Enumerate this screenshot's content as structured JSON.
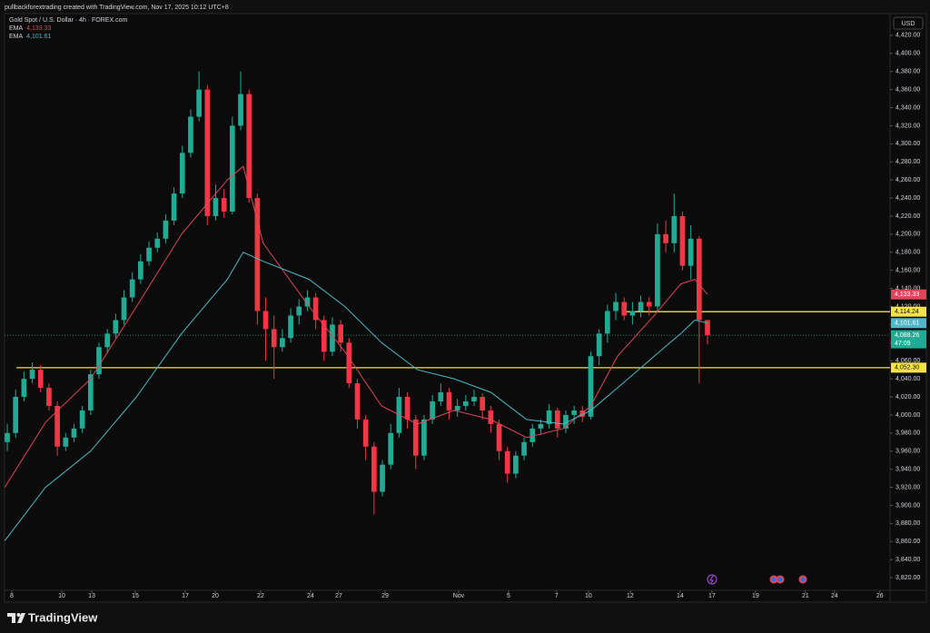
{
  "header": {
    "text": "pullbackforextrading created with TradingView.com, Nov 17, 2025 10:12 UTC+8"
  },
  "footer": {
    "brand": "TradingView"
  },
  "chart_data": {
    "type": "candlestick",
    "title": "Gold Spot / U.S. Dollar · 4h · FOREX.com",
    "axis_unit": "USD",
    "up_color": "#22ab94",
    "down_color": "#f23645",
    "grid": false,
    "x": [
      0,
      1,
      2,
      3,
      4,
      5,
      6,
      7,
      8,
      9,
      10,
      11,
      12,
      13,
      14,
      15,
      16,
      17,
      18,
      19,
      20,
      21,
      22,
      23,
      24,
      25,
      26,
      27,
      28,
      29,
      30,
      31,
      32,
      33,
      34,
      35,
      36,
      37,
      38,
      39,
      40,
      41,
      42,
      43,
      44,
      45,
      46,
      47,
      48,
      49,
      50,
      51,
      52,
      53,
      54,
      55,
      56,
      57,
      58,
      59,
      60,
      61,
      62,
      63,
      64,
      65,
      66,
      67,
      68,
      69,
      70,
      71,
      72,
      73,
      74,
      75,
      76,
      77,
      78,
      79,
      80,
      81,
      82,
      83,
      84
    ],
    "open": [
      3970,
      3980,
      4020,
      4040,
      4050,
      4030,
      4010,
      3965,
      3975,
      3985,
      4005,
      4045,
      4075,
      4090,
      4105,
      4130,
      4150,
      4170,
      4185,
      4195,
      4215,
      4245,
      4290,
      4330,
      4360,
      4220,
      4240,
      4225,
      4320,
      4355,
      4240,
      4115,
      4095,
      4075,
      4085,
      4110,
      4120,
      4130,
      4105,
      4070,
      4100,
      4080,
      4035,
      3995,
      3965,
      3915,
      3945,
      3980,
      4020,
      3995,
      3955,
      3995,
      4015,
      4025,
      4005,
      4010,
      4015,
      4020,
      4005,
      3990,
      3960,
      3935,
      3955,
      3970,
      3985,
      3990,
      4005,
      3985,
      4000,
      4005,
      3998,
      4065,
      4090,
      4115,
      4125,
      4110,
      4115,
      4125,
      4120,
      4200,
      4190,
      4220,
      4165,
      4195,
      4105
    ],
    "high": [
      3990,
      4028,
      4048,
      4058,
      4055,
      4035,
      4015,
      3980,
      3990,
      4010,
      4050,
      4080,
      4095,
      4112,
      4138,
      4158,
      4178,
      4192,
      4202,
      4222,
      4252,
      4298,
      4338,
      4380,
      4365,
      4255,
      4250,
      4330,
      4380,
      4360,
      4245,
      4130,
      4110,
      4095,
      4118,
      4128,
      4138,
      4135,
      4110,
      4108,
      4105,
      4085,
      4040,
      4000,
      3970,
      3950,
      3990,
      4030,
      4025,
      4000,
      4000,
      4022,
      4035,
      4030,
      4018,
      4022,
      4028,
      4024,
      4010,
      3995,
      3965,
      3960,
      3975,
      3990,
      3995,
      4012,
      4008,
      4005,
      4010,
      4010,
      4070,
      4095,
      4122,
      4135,
      4130,
      4125,
      4132,
      4130,
      4212,
      4215,
      4245,
      4225,
      4210,
      4198,
      4100
    ],
    "low": [
      3960,
      3975,
      4015,
      4035,
      4025,
      4005,
      3955,
      3960,
      3970,
      3980,
      4000,
      4040,
      4068,
      4085,
      4100,
      4125,
      4145,
      4165,
      4180,
      4190,
      4210,
      4240,
      4285,
      4325,
      4210,
      4215,
      4218,
      4222,
      4315,
      4235,
      4100,
      4060,
      4040,
      4070,
      4080,
      4100,
      4115,
      4095,
      4060,
      4065,
      4070,
      4030,
      3985,
      3950,
      3890,
      3910,
      3940,
      3975,
      3985,
      3940,
      3950,
      3990,
      4010,
      3995,
      3998,
      4005,
      4010,
      3995,
      3980,
      3950,
      3925,
      3930,
      3950,
      3965,
      3978,
      3985,
      3975,
      3980,
      3990,
      3992,
      3995,
      4055,
      4080,
      4105,
      4105,
      4100,
      4108,
      4110,
      4115,
      4180,
      4180,
      4160,
      4150,
      4035,
      4078
    ],
    "close": [
      3980,
      4020,
      4040,
      4050,
      4030,
      4010,
      3965,
      3975,
      3985,
      4005,
      4045,
      4075,
      4090,
      4105,
      4130,
      4150,
      4170,
      4185,
      4195,
      4215,
      4245,
      4290,
      4330,
      4360,
      4220,
      4240,
      4225,
      4320,
      4355,
      4240,
      4115,
      4095,
      4075,
      4085,
      4110,
      4120,
      4130,
      4105,
      4070,
      4100,
      4080,
      4035,
      3995,
      3965,
      3915,
      3945,
      3980,
      4020,
      3995,
      3955,
      3995,
      4015,
      4025,
      4005,
      4010,
      4015,
      4020,
      4005,
      3990,
      3960,
      3935,
      3955,
      3970,
      3985,
      3990,
      4005,
      3985,
      4000,
      4005,
      3998,
      4065,
      4090,
      4115,
      4125,
      4110,
      4115,
      4125,
      4120,
      4200,
      4190,
      4220,
      4165,
      4195,
      4105,
      4088.26
    ],
    "series": [
      {
        "name": "EMA",
        "color": "#e0455c",
        "last_label": "4,133.33",
        "x": [
          -0.3,
          4.6,
          10,
          15.5,
          20.9,
          26.4,
          28.3,
          30.7,
          36.2,
          40.5,
          44.9,
          49.2,
          53.6,
          58,
          62.3,
          66.7,
          70,
          73.2,
          77.6,
          80.8,
          82.5,
          84
        ],
        "values": [
          3920,
          3992,
          4040,
          4120,
          4200,
          4260,
          4275,
          4190,
          4120,
          4070,
          4010,
          3990,
          4005,
          3995,
          3975,
          3985,
          4010,
          4065,
          4110,
          4145,
          4150,
          4133.33
        ]
      },
      {
        "name": "EMA",
        "color": "#4fb8c9",
        "last_label": "4,101.61",
        "x": [
          -0.3,
          4.6,
          10,
          15.5,
          20.9,
          26.4,
          28.3,
          30.7,
          36.2,
          40.5,
          44.9,
          49.2,
          53.6,
          58,
          62.3,
          66.7,
          70,
          73.2,
          77.6,
          80.8,
          82.5,
          84
        ],
        "values": [
          3861,
          3920,
          3960,
          4020,
          4090,
          4150,
          4180,
          4170,
          4150,
          4120,
          4080,
          4050,
          4040,
          4025,
          3995,
          3990,
          4005,
          4030,
          4065,
          4090,
          4105,
          4101.61
        ]
      }
    ],
    "levels": [
      {
        "value": 4114.24,
        "label": "4,114.24",
        "from": 73.9,
        "color": "#f5e14a"
      },
      {
        "value": 4052.3,
        "label": "4,052.30",
        "from": 1.1,
        "color": "#f5e14a"
      }
    ],
    "last_price": {
      "value": 4088.26,
      "label": "4,088.26",
      "countdown": "47:09",
      "color": "#22ab94"
    },
    "xlim": [
      -0.33,
      105.9
    ],
    "xticks": [
      {
        "value": 0.54,
        "label": "8"
      },
      {
        "value": 6.54,
        "label": "10"
      },
      {
        "value": 10.13,
        "label": "13"
      },
      {
        "value": 15.36,
        "label": "15"
      },
      {
        "value": 21.35,
        "label": "17"
      },
      {
        "value": 24.95,
        "label": "20"
      },
      {
        "value": 30.39,
        "label": "22"
      },
      {
        "value": 36.38,
        "label": "24"
      },
      {
        "value": 39.76,
        "label": "27"
      },
      {
        "value": 45.32,
        "label": "29"
      },
      {
        "value": 54.14,
        "label": "Nov"
      },
      {
        "value": 60.13,
        "label": "5"
      },
      {
        "value": 65.9,
        "label": "7"
      },
      {
        "value": 69.72,
        "label": "10"
      },
      {
        "value": 74.73,
        "label": "12"
      },
      {
        "value": 80.72,
        "label": "14"
      },
      {
        "value": 84.53,
        "label": "17"
      },
      {
        "value": 89.76,
        "label": "19"
      },
      {
        "value": 95.75,
        "label": "21"
      },
      {
        "value": 99.24,
        "label": "24"
      },
      {
        "value": 104.68,
        "label": "26"
      }
    ],
    "ylim": [
      3806,
      4444
    ],
    "yticks": [
      {
        "value": 3820,
        "label": "3,820.00"
      },
      {
        "value": 3840,
        "label": "3,840.00"
      },
      {
        "value": 3860,
        "label": "3,860.00"
      },
      {
        "value": 3880,
        "label": "3,880.00"
      },
      {
        "value": 3900,
        "label": "3,900.00"
      },
      {
        "value": 3920,
        "label": "3,920.00"
      },
      {
        "value": 3940,
        "label": "3,940.00"
      },
      {
        "value": 3960,
        "label": "3,960.00"
      },
      {
        "value": 3980,
        "label": "3,980.00"
      },
      {
        "value": 4000,
        "label": "4,000.00"
      },
      {
        "value": 4020,
        "label": "4,020.00"
      },
      {
        "value": 4040,
        "label": "4,040.00"
      },
      {
        "value": 4060,
        "label": "4,060.00"
      },
      {
        "value": 4080,
        "label": "4,080.00"
      },
      {
        "value": 4100,
        "label": "4,100.00"
      },
      {
        "value": 4120,
        "label": "4,120.00"
      },
      {
        "value": 4140,
        "label": "4,140.00"
      },
      {
        "value": 4160,
        "label": "4,160.00"
      },
      {
        "value": 4180,
        "label": "4,180.00"
      },
      {
        "value": 4200,
        "label": "4,200.00"
      },
      {
        "value": 4220,
        "label": "4,220.00"
      },
      {
        "value": 4240,
        "label": "4,240.00"
      },
      {
        "value": 4260,
        "label": "4,260.00"
      },
      {
        "value": 4280,
        "label": "4,280.00"
      },
      {
        "value": 4300,
        "label": "4,300.00"
      },
      {
        "value": 4320,
        "label": "4,320.00"
      },
      {
        "value": 4340,
        "label": "4,340.00"
      },
      {
        "value": 4360,
        "label": "4,360.00"
      },
      {
        "value": 4380,
        "label": "4,380.00"
      },
      {
        "value": 4400,
        "label": "4,400.00"
      },
      {
        "value": 4420,
        "label": "4,420.00"
      }
    ]
  }
}
